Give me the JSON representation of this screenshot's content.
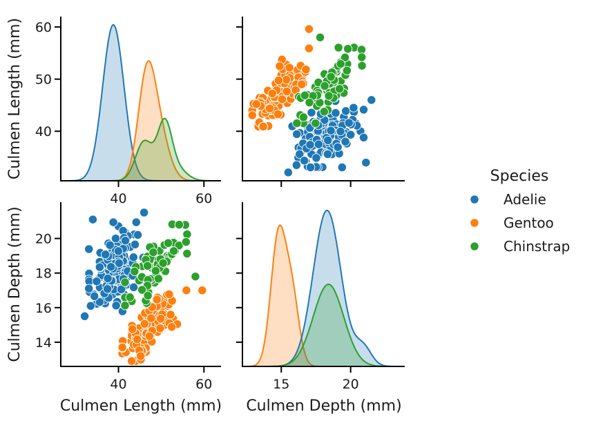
{
  "chart_data": {
    "type": "pairplot",
    "variables": [
      "Culmen Length (mm)",
      "Culmen Depth (mm)"
    ],
    "axes": {
      "Culmen Length (mm)": {
        "lim": [
          30.5,
          62.0
        ],
        "ticks": [
          40,
          50,
          60
        ],
        "x_ticks": [
          40,
          60
        ]
      },
      "Culmen Depth (mm)": {
        "lim": [
          12.6,
          22.1
        ],
        "ticks": [
          14,
          16,
          18,
          20
        ],
        "x_ticks": [
          15,
          20
        ],
        "x_lim": [
          12.2,
          23.9
        ]
      }
    },
    "legend": {
      "title": "Species",
      "placement": "right",
      "entries": [
        {
          "name": "Adelie",
          "color": "#1f77b4"
        },
        {
          "name": "Gentoo",
          "color": "#ff7f0e"
        },
        {
          "name": "Chinstrap",
          "color": "#2ca02c"
        }
      ]
    },
    "kde": {
      "Culmen Length (mm)": {
        "x_range": [
          26.5,
          64.0
        ],
        "series": [
          {
            "name": "Adelie",
            "color": "#1f77b4",
            "peaks": [
              {
                "mean": 38.8,
                "sd": 2.5,
                "w": 1
              }
            ]
          },
          {
            "name": "Gentoo",
            "color": "#ff7f0e",
            "peaks": [
              {
                "mean": 46.5,
                "sd": 2.0,
                "w": 0.75
              },
              {
                "mean": 49.3,
                "sd": 2.4,
                "w": 0.4
              }
            ]
          },
          {
            "name": "Chinstrap",
            "color": "#2ca02c",
            "peaks": [
              {
                "mean": 46.0,
                "sd": 2.0,
                "w": 0.45
              },
              {
                "mean": 50.8,
                "sd": 1.7,
                "w": 0.65
              },
              {
                "mean": 54.0,
                "sd": 2.2,
                "w": 0.12
              }
            ]
          }
        ],
        "peak_heights": {
          "Adelie": 0.95,
          "Gentoo": 0.73,
          "Chinstrap": 0.38
        }
      },
      "Culmen Depth (mm)": {
        "x_range": [
          12.2,
          23.9
        ],
        "series": [
          {
            "name": "Gentoo",
            "color": "#ff7f0e",
            "peaks": [
              {
                "mean": 14.8,
                "sd": 0.55,
                "w": 1
              },
              {
                "mean": 15.8,
                "sd": 0.5,
                "w": 0.5
              }
            ]
          },
          {
            "name": "Adelie",
            "color": "#1f77b4",
            "peaks": [
              {
                "mean": 18.3,
                "sd": 1.0,
                "w": 1
              },
              {
                "mean": 20.9,
                "sd": 0.6,
                "w": 0.12
              }
            ]
          },
          {
            "name": "Chinstrap",
            "color": "#2ca02c",
            "peaks": [
              {
                "mean": 18.4,
                "sd": 1.1,
                "w": 1
              }
            ]
          }
        ],
        "peak_heights": {
          "Gentoo": 0.86,
          "Adelie": 0.95,
          "Chinstrap": 0.5
        }
      }
    },
    "scatter": {
      "n_points": {
        "Adelie": 150,
        "Gentoo": 120,
        "Chinstrap": 68
      },
      "clusters": {
        "Adelie": {
          "len_mean": 38.8,
          "len_sd": 2.6,
          "dep_mean": 18.3,
          "dep_sd": 1.2,
          "corr": 0.4
        },
        "Gentoo": {
          "len_mean": 47.5,
          "len_sd": 3.0,
          "dep_mean": 15.0,
          "dep_sd": 0.95,
          "corr": 0.65
        },
        "Chinstrap": {
          "len_mean": 48.8,
          "len_sd": 3.3,
          "dep_mean": 18.4,
          "dep_sd": 1.1,
          "corr": 0.65
        }
      },
      "notable_points": [
        {
          "series": "Gentoo",
          "len": 59.6,
          "dep": 17.0
        },
        {
          "series": "Gentoo",
          "len": 55.9,
          "dep": 17.0
        },
        {
          "series": "Chinstrap",
          "len": 58.0,
          "dep": 17.8
        },
        {
          "series": "Chinstrap",
          "len": 55.8,
          "dep": 19.8
        },
        {
          "series": "Chinstrap",
          "len": 54.2,
          "dep": 20.8
        },
        {
          "series": "Adelie",
          "len": 46.0,
          "dep": 21.5
        },
        {
          "series": "Adelie",
          "len": 32.1,
          "dep": 15.5
        },
        {
          "series": "Adelie",
          "len": 33.5,
          "dep": 16.1
        },
        {
          "series": "Adelie",
          "len": 34.0,
          "dep": 21.1
        },
        {
          "series": "Adelie",
          "len": 45.8,
          "dep": 18.9
        },
        {
          "series": "Gentoo",
          "len": 40.9,
          "dep": 13.7
        },
        {
          "series": "Gentoo",
          "len": 45.2,
          "dep": 13.2
        }
      ]
    }
  }
}
